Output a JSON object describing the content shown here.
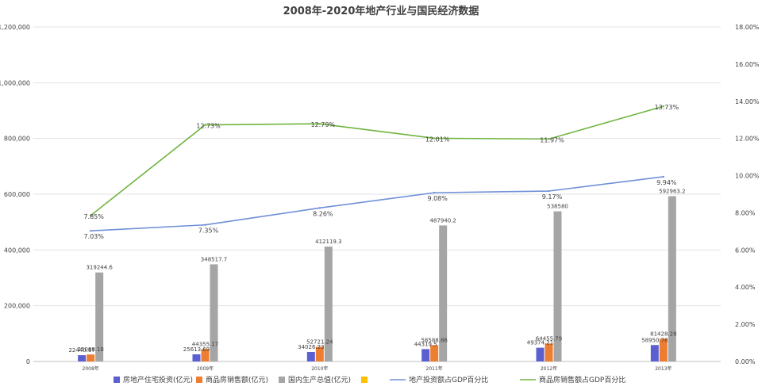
{
  "chart_data": {
    "type": "bar",
    "title": "2008年-2020年地产行业与国民经济数据",
    "categories": [
      "2008年",
      "2009年",
      "2010年",
      "2011年",
      "2012年",
      "2013年"
    ],
    "y_left": {
      "ticks": [
        "0",
        "200,000",
        "400,000",
        "600,000",
        "800,000",
        "1,000,000",
        "1,200,000"
      ],
      "ylim": [
        0,
        1200000
      ]
    },
    "y_right": {
      "ticks": [
        "0.00%",
        "2.00%",
        "4.00%",
        "6.00%",
        "8.00%",
        "10.00%",
        "12.00%",
        "14.00%",
        "16.00%",
        "18.00%"
      ],
      "ylim": [
        0,
        18
      ]
    },
    "bar_series": [
      {
        "name": "房地产住宅投资(亿元)",
        "color": "#5b5fd0",
        "values": [
          22440.87,
          25613.69,
          34026.23,
          44319.5,
          49374.21,
          58950.76
        ],
        "labels": [
          "22440.87",
          "25613.69",
          "34026.23",
          "44319.5",
          "49374.21",
          "58950.76"
        ]
      },
      {
        "name": "商品房销售额(亿元)",
        "color": "#ed7d31",
        "values": [
          25068.18,
          44355.17,
          52721.24,
          58588.86,
          64455.79,
          81428.28
        ],
        "labels": [
          "25068.18",
          "44355.17",
          "52721.24",
          "58588.86",
          "64455.79",
          "81428.28"
        ]
      },
      {
        "name": "国内生产总值(亿元)",
        "color": "#a5a5a5",
        "values": [
          319244.6,
          348517.7,
          412119.3,
          487940.2,
          538580,
          592963.2
        ],
        "labels": [
          "319244.6",
          "348517.7",
          "412119.3",
          "487940.2",
          "538580",
          "592963.2"
        ]
      }
    ],
    "empty_series": {
      "name": "",
      "color": "#ffc000"
    },
    "line_series": [
      {
        "name": "地产投资额占GDP百分比",
        "color": "#6f8fd8",
        "values": [
          7.03,
          7.35,
          8.26,
          9.08,
          9.17,
          9.94
        ],
        "labels": [
          "7.03%",
          "7.35%",
          "8.26%",
          "9.08%",
          "9.17%",
          "9.94%"
        ]
      },
      {
        "name": "商品房销售额占GDP百分比",
        "color": "#70b53f",
        "values": [
          7.85,
          12.73,
          12.79,
          12.01,
          11.97,
          13.73
        ],
        "labels": [
          "7.85%",
          "12.73%",
          "12.79%",
          "12.01%",
          "11.97%",
          "13.73%"
        ]
      }
    ],
    "legend_position": "bottom",
    "grid": true
  }
}
